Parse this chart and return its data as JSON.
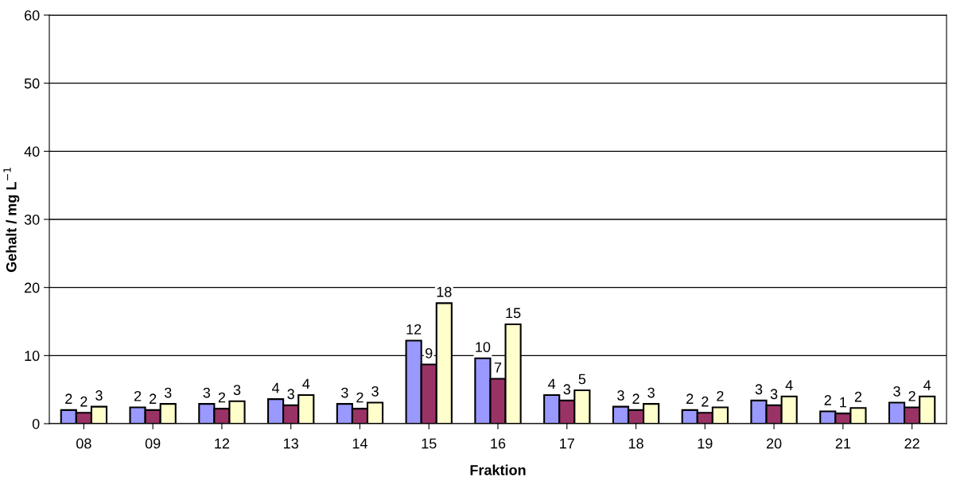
{
  "chart_data": {
    "type": "bar",
    "xlabel": "Fraktion",
    "ylabel": "Gehalt / mg L$^{−1}$",
    "categories": [
      "08",
      "09",
      "12",
      "13",
      "14",
      "15",
      "16",
      "17",
      "18",
      "19",
      "20",
      "21",
      "22"
    ],
    "series": [
      {
        "color": "#9999ff",
        "values": [
          2.0,
          2.4,
          2.9,
          3.6,
          2.9,
          12.2,
          9.6,
          4.2,
          2.5,
          2.0,
          3.4,
          1.8,
          3.1
        ],
        "value_labels": [
          "2",
          "2",
          "3",
          "4",
          "3",
          "12",
          "10",
          "4",
          "3",
          "2",
          "3",
          "2",
          "3"
        ]
      },
      {
        "color": "#993366",
        "values": [
          1.6,
          2.0,
          2.2,
          2.7,
          2.2,
          8.7,
          6.6,
          3.4,
          2.0,
          1.6,
          2.7,
          1.5,
          2.4
        ],
        "value_labels": [
          "2",
          "2",
          "2",
          "3",
          "2",
          "9",
          "7",
          "3",
          "2",
          "2",
          "3",
          "1",
          "2"
        ]
      },
      {
        "color": "#ffffcc",
        "values": [
          2.5,
          2.9,
          3.3,
          4.2,
          3.1,
          17.7,
          14.6,
          4.9,
          2.9,
          2.4,
          4.0,
          2.3,
          4.0
        ],
        "value_labels": [
          "3",
          "3",
          "3",
          "4",
          "3",
          "18",
          "15",
          "5",
          "3",
          "2",
          "4",
          "2",
          "4"
        ]
      }
    ],
    "ylim": [
      0,
      60
    ],
    "yticks": [
      0,
      10,
      20,
      30,
      40,
      50,
      60
    ],
    "grid": "y"
  }
}
